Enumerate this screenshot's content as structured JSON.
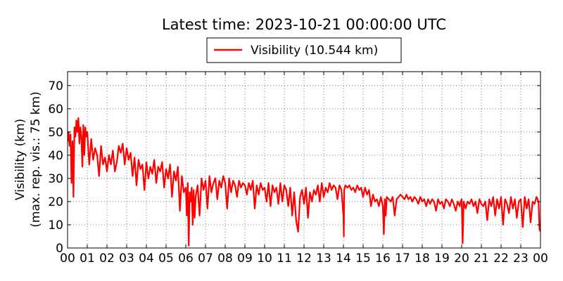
{
  "chart_data": {
    "type": "line",
    "title": "Latest time: 2023-10-21 00:00:00 UTC",
    "ylabel_line1": "Visibility (km)",
    "ylabel_line2": "(max. rep. vis.: 75 km)",
    "xlabel": "",
    "xlim": [
      0,
      24
    ],
    "ylim": [
      0,
      76
    ],
    "grid": true,
    "legend_position": "top-center",
    "x_tick_labels": [
      "00",
      "01",
      "02",
      "03",
      "04",
      "05",
      "06",
      "07",
      "08",
      "09",
      "10",
      "11",
      "12",
      "13",
      "14",
      "15",
      "16",
      "17",
      "18",
      "19",
      "20",
      "21",
      "22",
      "23",
      "00"
    ],
    "y_ticks": [
      0,
      10,
      20,
      30,
      40,
      50,
      60,
      70
    ],
    "series": [
      {
        "name": "Visibility (10.544 km)",
        "color": "#ff0000",
        "x": [
          0.0,
          0.05,
          0.1,
          0.15,
          0.2,
          0.25,
          0.3,
          0.35,
          0.4,
          0.45,
          0.5,
          0.55,
          0.6,
          0.65,
          0.7,
          0.75,
          0.8,
          0.85,
          0.9,
          0.95,
          1.0,
          1.1,
          1.2,
          1.3,
          1.4,
          1.5,
          1.6,
          1.7,
          1.8,
          1.9,
          2.0,
          2.1,
          2.2,
          2.3,
          2.4,
          2.5,
          2.6,
          2.7,
          2.8,
          2.9,
          3.0,
          3.1,
          3.2,
          3.3,
          3.4,
          3.5,
          3.6,
          3.7,
          3.8,
          3.9,
          4.0,
          4.1,
          4.2,
          4.3,
          4.4,
          4.5,
          4.6,
          4.7,
          4.8,
          4.9,
          5.0,
          5.1,
          5.2,
          5.3,
          5.4,
          5.5,
          5.6,
          5.7,
          5.8,
          5.9,
          6.0,
          6.05,
          6.1,
          6.15,
          6.2,
          6.25,
          6.3,
          6.35,
          6.4,
          6.45,
          6.5,
          6.6,
          6.7,
          6.8,
          6.9,
          7.0,
          7.1,
          7.2,
          7.3,
          7.4,
          7.5,
          7.6,
          7.7,
          7.8,
          7.9,
          8.0,
          8.1,
          8.2,
          8.3,
          8.4,
          8.5,
          8.6,
          8.7,
          8.8,
          8.9,
          9.0,
          9.1,
          9.2,
          9.3,
          9.4,
          9.5,
          9.6,
          9.7,
          9.8,
          9.9,
          10.0,
          10.1,
          10.2,
          10.3,
          10.4,
          10.5,
          10.6,
          10.7,
          10.8,
          10.9,
          11.0,
          11.1,
          11.2,
          11.3,
          11.4,
          11.5,
          11.6,
          11.7,
          11.8,
          11.9,
          12.0,
          12.1,
          12.2,
          12.3,
          12.4,
          12.5,
          12.6,
          12.7,
          12.8,
          12.9,
          13.0,
          13.1,
          13.2,
          13.3,
          13.4,
          13.5,
          13.6,
          13.7,
          13.8,
          13.9,
          14.0,
          14.02,
          14.04,
          14.1,
          14.2,
          14.3,
          14.4,
          14.5,
          14.6,
          14.7,
          14.8,
          14.9,
          15.0,
          15.1,
          15.2,
          15.3,
          15.4,
          15.5,
          15.6,
          15.7,
          15.8,
          15.9,
          16.0,
          16.05,
          16.1,
          16.15,
          16.2,
          16.3,
          16.4,
          16.5,
          16.6,
          16.7,
          16.8,
          16.9,
          17.0,
          17.1,
          17.2,
          17.3,
          17.4,
          17.5,
          17.6,
          17.7,
          17.8,
          17.9,
          18.0,
          18.1,
          18.2,
          18.3,
          18.4,
          18.5,
          18.6,
          18.7,
          18.8,
          18.9,
          19.0,
          19.1,
          19.2,
          19.3,
          19.4,
          19.5,
          19.6,
          19.7,
          19.8,
          19.9,
          19.95,
          20.0,
          20.05,
          20.1,
          20.2,
          20.3,
          20.4,
          20.5,
          20.6,
          20.7,
          20.8,
          20.9,
          21.0,
          21.1,
          21.2,
          21.3,
          21.4,
          21.5,
          21.6,
          21.7,
          21.8,
          21.9,
          22.0,
          22.1,
          22.2,
          22.3,
          22.4,
          22.5,
          22.6,
          22.7,
          22.8,
          22.9,
          23.0,
          23.1,
          23.2,
          23.3,
          23.4,
          23.5,
          23.6,
          23.7,
          23.8,
          23.9,
          23.95,
          24.0
        ],
        "y": [
          46,
          50,
          44,
          49,
          28,
          46,
          22,
          52,
          48,
          55,
          50,
          56,
          45,
          52,
          48,
          35,
          53,
          40,
          52,
          48,
          50,
          36,
          47,
          38,
          43,
          40,
          31,
          44,
          36,
          39,
          33,
          40,
          36,
          42,
          33,
          37,
          44,
          41,
          45,
          36,
          43,
          38,
          41,
          31,
          39,
          27,
          38,
          34,
          36,
          25,
          37,
          30,
          35,
          32,
          38,
          28,
          35,
          33,
          37,
          26,
          34,
          30,
          36,
          22,
          33,
          29,
          35,
          16,
          31,
          24,
          26,
          14,
          28,
          1,
          24,
          20,
          26,
          10,
          25,
          13,
          22,
          27,
          14,
          30,
          25,
          29,
          17,
          31,
          24,
          28,
          30,
          21,
          29,
          26,
          31,
          28,
          17,
          30,
          24,
          29,
          27,
          22,
          29,
          26,
          28,
          27,
          23,
          28,
          25,
          29,
          17,
          27,
          23,
          28,
          25,
          26,
          20,
          28,
          18,
          27,
          24,
          26,
          19,
          28,
          20,
          27,
          25,
          18,
          26,
          14,
          24,
          12,
          7,
          22,
          25,
          19,
          26,
          13,
          24,
          20,
          25,
          23,
          27,
          20,
          28,
          22,
          26,
          24,
          28,
          25,
          27,
          26,
          21,
          27,
          25,
          14,
          5,
          25,
          27,
          26,
          27,
          25,
          26,
          24,
          27,
          25,
          26,
          22,
          26,
          23,
          25,
          18,
          23,
          20,
          21,
          18,
          22,
          18,
          6,
          21,
          14,
          22,
          21,
          20,
          22,
          14,
          21,
          22,
          23,
          22,
          21,
          23,
          21,
          22,
          20,
          22,
          21,
          19,
          22,
          20,
          21,
          18,
          21,
          19,
          21,
          20,
          16,
          21,
          19,
          20,
          17,
          21,
          20,
          18,
          21,
          19,
          16,
          20,
          18,
          20,
          21,
          2,
          20,
          17,
          20,
          19,
          21,
          18,
          20,
          15,
          21,
          19,
          18,
          20,
          12,
          21,
          18,
          22,
          14,
          21,
          17,
          22,
          10,
          21,
          19,
          15,
          22,
          17,
          21,
          13,
          20,
          21,
          9,
          22,
          17,
          21,
          11,
          20,
          19,
          22,
          20,
          8,
          7
        ]
      }
    ]
  }
}
